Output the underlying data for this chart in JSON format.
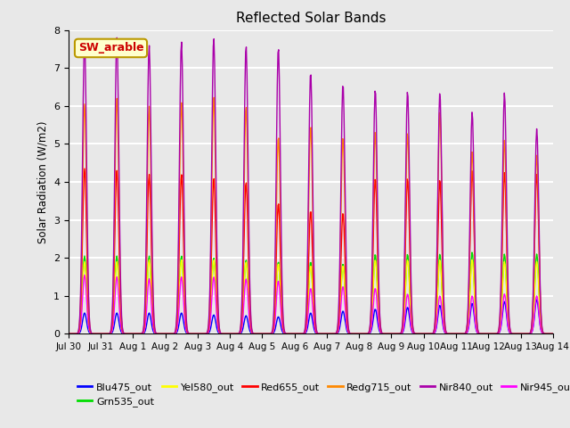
{
  "title": "Reflected Solar Bands",
  "ylabel": "Solar Radiation (W/m2)",
  "annotation": "SW_arable",
  "ylim": [
    0.0,
    8.0
  ],
  "yticks": [
    0.0,
    1.0,
    2.0,
    3.0,
    4.0,
    5.0,
    6.0,
    7.0,
    8.0
  ],
  "xtick_labels": [
    "Jul 30",
    "Jul 31",
    "Aug 1",
    "Aug 2",
    "Aug 3",
    "Aug 4",
    "Aug 5",
    "Aug 6",
    "Aug 7",
    "Aug 8",
    "Aug 9",
    "Aug 10",
    "Aug 11",
    "Aug 12",
    "Aug 13",
    "Aug 14"
  ],
  "n_days": 16,
  "points_per_day": 48,
  "band_colors": {
    "Blu475_out": "#0000ff",
    "Grn535_out": "#00dd00",
    "Yel580_out": "#ffff00",
    "Red655_out": "#ff0000",
    "Redg715_out": "#ff8800",
    "Nir840_out": "#aa00aa",
    "Nir945_out": "#ff00ff"
  },
  "nir840_peaks": [
    7.7,
    7.8,
    7.6,
    7.7,
    7.8,
    7.6,
    7.55,
    6.9,
    6.6,
    6.45,
    6.4,
    6.35,
    5.85,
    6.35,
    5.4,
    0.0
  ],
  "nir945_peaks": [
    1.55,
    1.5,
    1.45,
    1.5,
    1.5,
    1.45,
    1.4,
    1.2,
    1.25,
    1.2,
    1.05,
    1.0,
    1.0,
    1.05,
    1.0,
    0.0
  ],
  "red655_peaks": [
    4.35,
    4.3,
    4.2,
    4.2,
    4.1,
    4.0,
    3.45,
    3.25,
    3.2,
    4.1,
    4.1,
    4.05,
    4.3,
    4.25,
    4.2,
    0.0
  ],
  "redg715_peaks": [
    6.05,
    6.2,
    6.0,
    6.1,
    6.25,
    6.0,
    5.2,
    5.5,
    5.2,
    5.35,
    5.3,
    5.85,
    4.8,
    5.1,
    4.7,
    0.0
  ],
  "grn535_peaks": [
    2.05,
    2.05,
    2.05,
    2.05,
    2.0,
    1.95,
    1.9,
    1.9,
    1.85,
    2.1,
    2.1,
    2.1,
    2.15,
    2.1,
    2.1,
    0.0
  ],
  "yel580_peaks": [
    1.9,
    1.9,
    1.95,
    1.95,
    1.95,
    1.9,
    1.85,
    1.8,
    1.8,
    1.95,
    1.95,
    1.95,
    1.95,
    1.9,
    1.9,
    0.0
  ],
  "blu475_peaks": [
    0.55,
    0.55,
    0.55,
    0.55,
    0.5,
    0.48,
    0.45,
    0.55,
    0.6,
    0.65,
    0.7,
    0.75,
    0.8,
    0.85,
    0.9,
    0.0
  ],
  "sigma_hours": 3.5,
  "background_color": "#e8e8e8",
  "grid_color": "#ffffff",
  "line_width": 1.0,
  "fig_bg": "#e8e8e8"
}
